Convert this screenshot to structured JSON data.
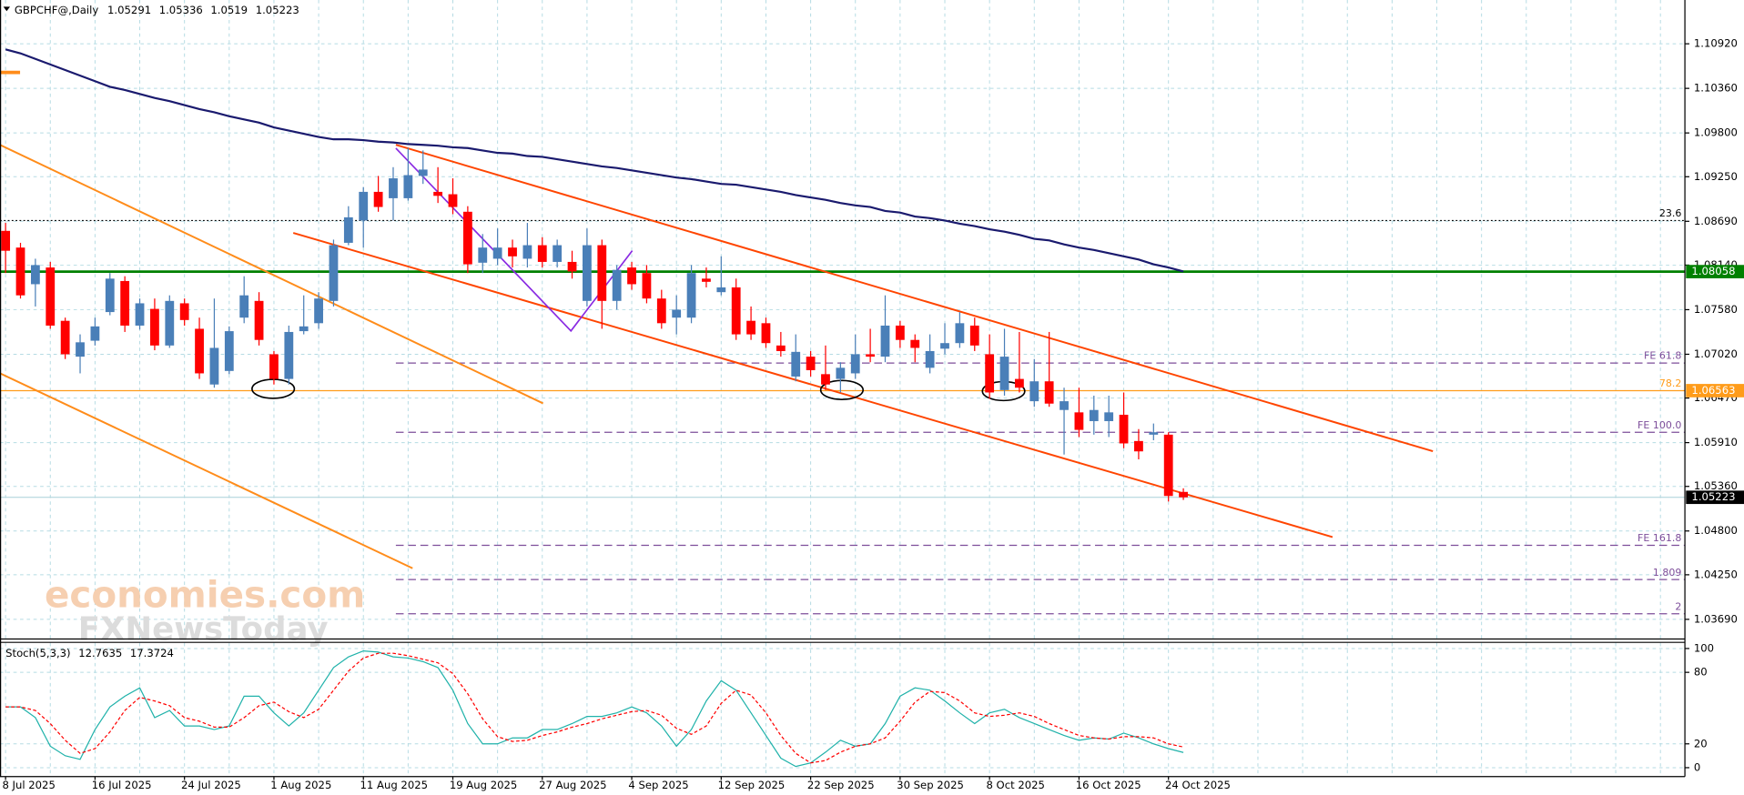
{
  "chart_data": {
    "type": "candlestick",
    "title": "GBPCHF@,Daily",
    "categories": [
      "8 Jul 2025",
      null,
      null,
      null,
      null,
      null,
      "16 Jul 2025",
      null,
      null,
      null,
      null,
      null,
      "24 Jul 2025",
      null,
      null,
      null,
      null,
      null,
      "1 Aug 2025",
      null,
      null,
      null,
      null,
      null,
      "11 Aug 2025",
      null,
      null,
      null,
      null,
      null,
      "19 Aug 2025",
      null,
      null,
      null,
      null,
      null,
      "27 Aug 2025",
      null,
      null,
      null,
      null,
      null,
      "4 Sep 2025",
      null,
      null,
      null,
      null,
      null,
      "12 Sep 2025",
      null,
      null,
      null,
      null,
      null,
      "22 Sep 2025",
      null,
      null,
      null,
      null,
      null,
      "30 Sep 2025",
      null,
      null,
      null,
      null,
      null,
      "8 Oct 2025",
      null,
      null,
      null,
      null,
      null,
      "16 Oct 2025",
      null,
      null,
      null,
      null,
      null,
      "24 Oct 2025",
      null
    ],
    "open": [
      1.0857,
      1.0836,
      1.079,
      1.0811,
      1.0744,
      1.0699,
      1.0719,
      1.0755,
      1.0794,
      1.0738,
      1.0759,
      1.0713,
      1.0766,
      1.0734,
      1.0664,
      1.0681,
      1.0748,
      1.0769,
      1.0702,
      1.0671,
      1.0731,
      1.0741,
      1.0769,
      1.0842,
      1.087,
      1.0906,
      1.0898,
      1.0898,
      1.0926,
      1.0906,
      1.0903,
      1.0881,
      1.0817,
      1.0822,
      1.0836,
      1.0822,
      1.0839,
      1.0818,
      1.0818,
      1.0769,
      1.0839,
      1.0769,
      1.0811,
      1.0804,
      1.0772,
      1.0748,
      1.0748,
      1.0797,
      1.078,
      1.0786,
      1.0744,
      1.0741,
      1.0713,
      1.0674,
      1.0699,
      1.0677,
      1.0671,
      1.0678,
      1.0702,
      1.0699,
      1.0738,
      1.072,
      1.0685,
      1.0709,
      1.0716,
      1.0738,
      1.0702,
      1.0657,
      1.0671,
      1.0643,
      1.0668,
      1.0632,
      1.0629,
      1.0618,
      1.0618,
      1.0626,
      1.0593,
      1.0601,
      1.0601,
      1.05291
    ],
    "high": [
      1.0867,
      1.0842,
      1.0822,
      1.0818,
      1.0748,
      1.0727,
      1.0748,
      1.0804,
      1.08,
      1.0772,
      1.0772,
      1.0776,
      1.0772,
      1.0748,
      1.0772,
      1.0737,
      1.08,
      1.078,
      1.0706,
      1.0738,
      1.0776,
      1.078,
      1.0846,
      1.0888,
      1.0912,
      1.0926,
      1.0937,
      1.0961,
      1.0958,
      1.0937,
      1.0923,
      1.0888,
      1.0853,
      1.086,
      1.0846,
      1.0867,
      1.0849,
      1.0846,
      1.0832,
      1.086,
      1.0846,
      1.0814,
      1.0818,
      1.0814,
      1.0783,
      1.0776,
      1.0814,
      1.0811,
      1.0825,
      1.0797,
      1.0762,
      1.0748,
      1.073,
      1.0727,
      1.0706,
      1.0713,
      1.0692,
      1.0727,
      1.0734,
      1.0776,
      1.0744,
      1.0727,
      1.0727,
      1.0741,
      1.0755,
      1.0748,
      1.0727,
      1.0734,
      1.073,
      1.0696,
      1.073,
      1.066,
      1.066,
      1.065,
      1.065,
      1.0654,
      1.0608,
      1.0615,
      1.0604,
      1.05336
    ],
    "low": [
      1.0804,
      1.0772,
      1.0762,
      1.0734,
      1.0696,
      1.0678,
      1.0713,
      1.0751,
      1.073,
      1.0733,
      1.0707,
      1.071,
      1.0738,
      1.0671,
      1.066,
      1.0677,
      1.0741,
      1.0713,
      1.0664,
      1.0664,
      1.0727,
      1.0734,
      1.0762,
      1.0839,
      1.0836,
      1.0881,
      1.087,
      1.0895,
      1.0916,
      1.0892,
      1.0878,
      1.0804,
      1.0804,
      1.0814,
      1.0811,
      1.0811,
      1.0811,
      1.0811,
      1.0797,
      1.0762,
      1.0734,
      1.0758,
      1.0783,
      1.0766,
      1.0734,
      1.0727,
      1.0741,
      1.0786,
      1.0776,
      1.072,
      1.072,
      1.071,
      1.0699,
      1.0668,
      1.0674,
      1.0657,
      1.0654,
      1.0671,
      1.0692,
      1.0692,
      1.071,
      1.0692,
      1.0678,
      1.0702,
      1.071,
      1.0706,
      1.0646,
      1.065,
      1.0654,
      1.0636,
      1.0636,
      1.0576,
      1.0598,
      1.0601,
      1.0598,
      1.0584,
      1.057,
      1.0594,
      1.0517,
      1.0519
    ],
    "close": [
      1.0832,
      1.0776,
      1.0814,
      1.0738,
      1.0702,
      1.0717,
      1.0737,
      1.0797,
      1.0738,
      1.0766,
      1.0713,
      1.0769,
      1.0745,
      1.0678,
      1.071,
      1.0731,
      1.0776,
      1.072,
      1.0671,
      1.073,
      1.0737,
      1.0772,
      1.0839,
      1.0874,
      1.0906,
      1.0887,
      1.0923,
      1.0927,
      1.0934,
      1.0901,
      1.0887,
      1.0815,
      1.0836,
      1.0836,
      1.0825,
      1.0839,
      1.0818,
      1.0839,
      1.0806,
      1.0839,
      1.0769,
      1.0808,
      1.079,
      1.0772,
      1.0741,
      1.0758,
      1.0804,
      1.0793,
      1.0786,
      1.0727,
      1.0727,
      1.0716,
      1.0706,
      1.0705,
      1.0682,
      1.0664,
      1.0685,
      1.0702,
      1.0699,
      1.0738,
      1.072,
      1.071,
      1.0706,
      1.0716,
      1.0741,
      1.0713,
      1.0654,
      1.0699,
      1.066,
      1.0668,
      1.064,
      1.0643,
      1.0607,
      1.0632,
      1.0629,
      1.059,
      1.058,
      1.0604,
      1.0524,
      1.05223
    ],
    "up_color": "#4a7fb8",
    "down_color": "#ff0000",
    "ma": {
      "color": "#1a1a6e",
      "values": [
        1.1085,
        1.108,
        1.1073,
        1.1066,
        1.1059,
        1.1052,
        1.1045,
        1.1038,
        1.1034,
        1.1029,
        1.1024,
        1.102,
        1.1015,
        1.101,
        1.1006,
        1.1001,
        1.0997,
        1.0993,
        1.0987,
        1.0983,
        1.0979,
        1.0975,
        1.0972,
        1.0972,
        1.0971,
        1.0969,
        1.0968,
        1.0966,
        1.0965,
        1.0964,
        1.0962,
        1.0961,
        1.0958,
        1.0955,
        1.0954,
        1.0951,
        1.095,
        1.0947,
        1.0944,
        1.0941,
        1.0938,
        1.0936,
        1.0933,
        1.093,
        1.0927,
        1.0924,
        1.0922,
        1.0919,
        1.0916,
        1.0915,
        1.0912,
        1.0909,
        1.0906,
        1.0902,
        1.0899,
        1.0896,
        1.0892,
        1.0889,
        1.0887,
        1.0882,
        1.088,
        1.0875,
        1.0873,
        1.087,
        1.0866,
        1.0863,
        1.0859,
        1.0856,
        1.0852,
        1.0847,
        1.0845,
        1.084,
        1.0836,
        1.0833,
        1.0829,
        1.0825,
        1.0821,
        1.0815,
        1.0811,
        1.0806
      ]
    },
    "ylim": [
      1.0345,
      1.1147
    ],
    "yticks": [
      {
        "value": 1.1092,
        "label": "1.10920"
      },
      {
        "value": 1.1036,
        "label": "1.10360"
      },
      {
        "value": 1.098,
        "label": "1.09800"
      },
      {
        "value": 1.0925,
        "label": "1.09250"
      },
      {
        "value": 1.0869,
        "label": "1.08690"
      },
      {
        "value": 1.0814,
        "label": "1.08140"
      },
      {
        "value": 1.0758,
        "label": "1.07580"
      },
      {
        "value": 1.0702,
        "label": "1.07020"
      },
      {
        "value": 1.0647,
        "label": "1.06470"
      },
      {
        "value": 1.0591,
        "label": "1.05910"
      },
      {
        "value": 1.0536,
        "label": "1.05360"
      },
      {
        "value": 1.048,
        "label": "1.04800"
      },
      {
        "value": 1.0425,
        "label": "1.04250"
      },
      {
        "value": 1.0369,
        "label": "1.03690"
      }
    ],
    "grid": true,
    "last_color": "#000000",
    "levels": [
      {
        "label": "23.6",
        "value": 1.087,
        "color": "#000000",
        "style": "dotted"
      },
      {
        "value": 1.08058,
        "color": "#008000",
        "style": "solid",
        "box": true
      },
      {
        "label": "FE 61.8",
        "value": 1.0691,
        "color": "#7d4e9a",
        "style": "dashed"
      },
      {
        "label": "78.2",
        "value": 1.06563,
        "color": "#ff9c1a",
        "style": "solid",
        "box": true
      },
      {
        "label": "FE 100.0",
        "value": 1.0604,
        "color": "#7d4e9a",
        "style": "dashed"
      },
      {
        "label": "FE 161.8",
        "value": 1.0462,
        "color": "#7d4e9a",
        "style": "dashed"
      },
      {
        "label": "1.809",
        "value": 1.0419,
        "color": "#7d4e9a",
        "style": "dashed"
      },
      {
        "label": "2",
        "value": 1.0376,
        "color": "#7d4e9a",
        "style": "dashed"
      }
    ],
    "watermark": [
      "economies.com",
      "FXNewsToday"
    ],
    "indicator": {
      "type": "line",
      "name": "Stoch(5,3,3)",
      "ylim": [
        -7.5,
        104.7
      ],
      "yticks": [
        0,
        20,
        80,
        100
      ],
      "series": [
        {
          "color": "#20b2aa",
          "style": "solid",
          "values": [
            51,
            51,
            42,
            18,
            10,
            7,
            32,
            51,
            60,
            67,
            42,
            48,
            35,
            35,
            32,
            35,
            60,
            60,
            46,
            35,
            46,
            65,
            84,
            93,
            98,
            97,
            93,
            92,
            89,
            84,
            65,
            37,
            20,
            20,
            25,
            25,
            32,
            32,
            37,
            43,
            43,
            46,
            51,
            46,
            35,
            18,
            32,
            56,
            73,
            65,
            46,
            27,
            8,
            1,
            4,
            13,
            23,
            18,
            20,
            37,
            60,
            67,
            65,
            56,
            46,
            37,
            46,
            49,
            42,
            37,
            32,
            27,
            23,
            25,
            24,
            29,
            25,
            20,
            16,
            12.7635
          ]
        },
        {
          "color": "#ff0000",
          "style": "dashed",
          "values": [
            51,
            51,
            48,
            37,
            23,
            12,
            16,
            30,
            48,
            59,
            56,
            52,
            42,
            39,
            34,
            34,
            42,
            52,
            55,
            47,
            42,
            49,
            65,
            81,
            92,
            96,
            96,
            94,
            91,
            88,
            79,
            62,
            41,
            26,
            22,
            23,
            27,
            30,
            34,
            37,
            41,
            44,
            47,
            48,
            44,
            33,
            28,
            35,
            54,
            65,
            61,
            46,
            27,
            12,
            4,
            6,
            13,
            18,
            20,
            25,
            39,
            55,
            64,
            63,
            56,
            46,
            43,
            44,
            46,
            43,
            37,
            32,
            27,
            25,
            24,
            26,
            26,
            25,
            20,
            17.3724
          ]
        }
      ]
    }
  }
}
